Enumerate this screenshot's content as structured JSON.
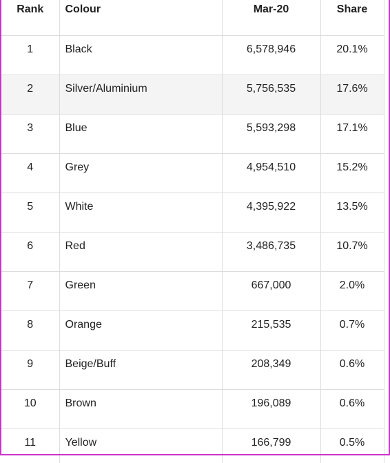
{
  "table": {
    "headers": {
      "rank": "Rank",
      "colour": "Colour",
      "period": "Mar-20",
      "share": "Share"
    },
    "rows": [
      {
        "rank": "1",
        "colour": "Black",
        "count": "6,578,946",
        "share": "20.1%"
      },
      {
        "rank": "2",
        "colour": "Silver/Aluminium",
        "count": "5,756,535",
        "share": "17.6%"
      },
      {
        "rank": "3",
        "colour": "Blue",
        "count": "5,593,298",
        "share": "17.1%"
      },
      {
        "rank": "4",
        "colour": "Grey",
        "count": "4,954,510",
        "share": "15.2%"
      },
      {
        "rank": "5",
        "colour": "White",
        "count": "4,395,922",
        "share": "13.5%"
      },
      {
        "rank": "6",
        "colour": "Red",
        "count": "3,486,735",
        "share": "10.7%"
      },
      {
        "rank": "7",
        "colour": "Green",
        "count": "667,000",
        "share": "2.0%"
      },
      {
        "rank": "8",
        "colour": "Orange",
        "count": "215,535",
        "share": "0.7%"
      },
      {
        "rank": "9",
        "colour": "Beige/Buff",
        "count": "208,349",
        "share": "0.6%"
      },
      {
        "rank": "10",
        "colour": "Brown",
        "count": "196,089",
        "share": "0.6%"
      },
      {
        "rank": "11",
        "colour": "Yellow",
        "count": "166,799",
        "share": "0.5%"
      }
    ]
  },
  "colors": {
    "highlight_row": "#f4f4f4",
    "frame_border": "#cc33cc",
    "grid_line": "#dddddd"
  }
}
